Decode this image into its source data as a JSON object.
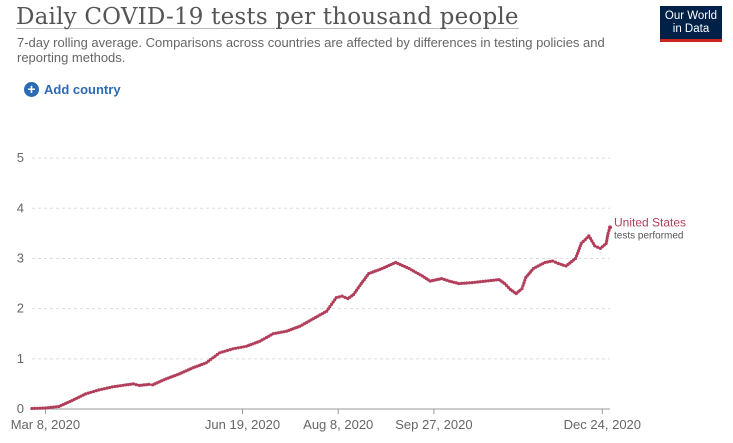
{
  "header": {
    "title": "Daily COVID-19 tests per thousand people",
    "subtitle": "7-day rolling average. Comparisons across countries are affected by differences in testing policies and reporting methods.",
    "logo_line1": "Our World",
    "logo_line2": "in Data"
  },
  "controls": {
    "add_country_label": "Add country",
    "add_icon": "plus-circle-icon"
  },
  "colors": {
    "series": "#b13f5b",
    "accent": "#2b6bb3",
    "logo_bg": "#002147",
    "logo_stripe": "#ce261e"
  },
  "chart_data": {
    "type": "line",
    "title": "Daily COVID-19 tests per thousand people",
    "xlabel": "",
    "ylabel": "",
    "x_start": "2020-03-01",
    "x_end": "2020-12-28",
    "ylim": [
      0,
      5.8
    ],
    "grid": true,
    "y_ticks": [
      "0",
      "1",
      "2",
      "3",
      "4",
      "5"
    ],
    "x_ticks": [
      {
        "date": "2020-03-08",
        "label": "Mar 8, 2020"
      },
      {
        "date": "2020-06-19",
        "label": "Jun 19, 2020"
      },
      {
        "date": "2020-08-08",
        "label": "Aug 8, 2020"
      },
      {
        "date": "2020-09-27",
        "label": "Sep 27, 2020"
      },
      {
        "date": "2020-12-24",
        "label": "Dec 24, 2020"
      }
    ],
    "series": [
      {
        "name": "United States",
        "sublabel": "tests performed",
        "points": [
          [
            "2020-03-01",
            0.01
          ],
          [
            "2020-03-08",
            0.02
          ],
          [
            "2020-03-15",
            0.05
          ],
          [
            "2020-03-22",
            0.17
          ],
          [
            "2020-03-29",
            0.3
          ],
          [
            "2020-04-05",
            0.38
          ],
          [
            "2020-04-12",
            0.44
          ],
          [
            "2020-04-19",
            0.48
          ],
          [
            "2020-04-23",
            0.5
          ],
          [
            "2020-04-26",
            0.47
          ],
          [
            "2020-05-01",
            0.49
          ],
          [
            "2020-05-03",
            0.48
          ],
          [
            "2020-05-10",
            0.6
          ],
          [
            "2020-05-17",
            0.7
          ],
          [
            "2020-05-24",
            0.82
          ],
          [
            "2020-05-31",
            0.92
          ],
          [
            "2020-06-07",
            1.12
          ],
          [
            "2020-06-14",
            1.2
          ],
          [
            "2020-06-21",
            1.25
          ],
          [
            "2020-06-28",
            1.35
          ],
          [
            "2020-07-05",
            1.5
          ],
          [
            "2020-07-12",
            1.55
          ],
          [
            "2020-07-19",
            1.65
          ],
          [
            "2020-07-26",
            1.8
          ],
          [
            "2020-08-02",
            1.95
          ],
          [
            "2020-08-07",
            2.22
          ],
          [
            "2020-08-10",
            2.25
          ],
          [
            "2020-08-13",
            2.2
          ],
          [
            "2020-08-16",
            2.28
          ],
          [
            "2020-08-20",
            2.5
          ],
          [
            "2020-08-24",
            2.7
          ],
          [
            "2020-08-31",
            2.8
          ],
          [
            "2020-09-07",
            2.92
          ],
          [
            "2020-09-14",
            2.8
          ],
          [
            "2020-09-21",
            2.65
          ],
          [
            "2020-09-25",
            2.55
          ],
          [
            "2020-10-01",
            2.6
          ],
          [
            "2020-10-05",
            2.55
          ],
          [
            "2020-10-10",
            2.5
          ],
          [
            "2020-10-17",
            2.52
          ],
          [
            "2020-10-24",
            2.55
          ],
          [
            "2020-10-31",
            2.58
          ],
          [
            "2020-11-03",
            2.5
          ],
          [
            "2020-11-06",
            2.38
          ],
          [
            "2020-11-09",
            2.3
          ],
          [
            "2020-11-12",
            2.4
          ],
          [
            "2020-11-14",
            2.62
          ],
          [
            "2020-11-18",
            2.8
          ],
          [
            "2020-11-24",
            2.92
          ],
          [
            "2020-11-28",
            2.95
          ],
          [
            "2020-12-01",
            2.9
          ],
          [
            "2020-12-05",
            2.85
          ],
          [
            "2020-12-10",
            3.0
          ],
          [
            "2020-12-13",
            3.3
          ],
          [
            "2020-12-17",
            3.45
          ],
          [
            "2020-12-20",
            3.25
          ],
          [
            "2020-12-23",
            3.2
          ],
          [
            "2020-12-26",
            3.3
          ],
          [
            "2020-12-27",
            3.5
          ],
          [
            "2020-12-28",
            3.62
          ]
        ]
      }
    ]
  }
}
